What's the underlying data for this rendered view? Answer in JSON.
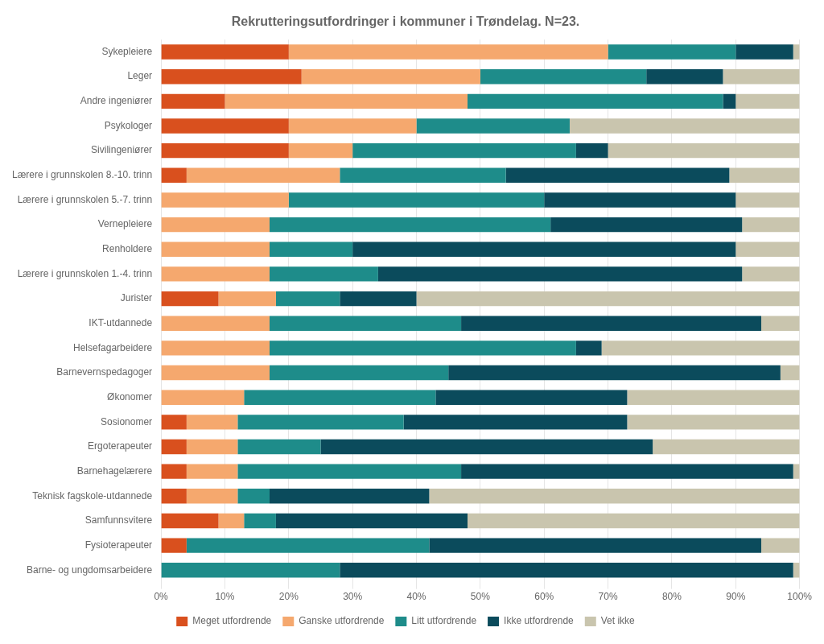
{
  "chart_data": {
    "type": "bar",
    "orientation": "horizontal",
    "stacked": true,
    "title": "Rekrutteringsutfordringer i kommuner i Trøndelag. N=23.",
    "categories": [
      "Sykepleiere",
      "Leger",
      "Andre ingeniører",
      "Psykologer",
      "Sivilingeniører",
      "Lærere i grunnskolen 8.-10. trinn",
      "Lærere i grunnskolen 5.-7. trinn",
      "Vernepleiere",
      "Renholdere",
      "Lærere i grunnskolen 1.-4. trinn",
      "Jurister",
      "IKT-utdannede",
      "Helsefagarbeidere",
      "Barnevernspedagoger",
      "Økonomer",
      "Sosionomer",
      "Ergoterapeuter",
      "Barnehagelærere",
      "Teknisk fagskole-utdannede",
      "Samfunnsvitere",
      "Fysioterapeuter",
      "Barne- og ungdomsarbeidere"
    ],
    "series": [
      {
        "name": "Meget utfordrende",
        "color": "#D9501E",
        "values": [
          20,
          22,
          10,
          20,
          20,
          4,
          0,
          0,
          0,
          0,
          9,
          0,
          0,
          0,
          0,
          4,
          4,
          4,
          4,
          9,
          4,
          0
        ]
      },
      {
        "name": "Ganske utfordrende",
        "color": "#F5A86E",
        "values": [
          50,
          28,
          38,
          20,
          10,
          24,
          20,
          17,
          17,
          17,
          9,
          17,
          17,
          17,
          13,
          8,
          8,
          8,
          8,
          4,
          0,
          0
        ]
      },
      {
        "name": "Litt utfordrende",
        "color": "#1E8C8A",
        "values": [
          20,
          26,
          40,
          24,
          35,
          26,
          40,
          44,
          13,
          17,
          10,
          30,
          48,
          28,
          30,
          26,
          13,
          35,
          5,
          5,
          38,
          28
        ]
      },
      {
        "name": "Ikke utfordrende",
        "color": "#0B4B5C",
        "values": [
          9,
          12,
          2,
          0,
          5,
          35,
          30,
          30,
          60,
          57,
          12,
          47,
          4,
          52,
          30,
          35,
          52,
          52,
          25,
          30,
          52,
          71
        ]
      },
      {
        "name": "Vet ikke",
        "color": "#C9C5AE",
        "values": [
          1,
          12,
          10,
          36,
          30,
          11,
          10,
          9,
          10,
          9,
          60,
          6,
          31,
          3,
          27,
          27,
          23,
          1,
          58,
          52,
          6,
          1
        ]
      }
    ],
    "xlim": [
      0,
      100
    ],
    "xticks": [
      {
        "value": 0,
        "label": "0%"
      },
      {
        "value": 10,
        "label": "10%"
      },
      {
        "value": 20,
        "label": "20%"
      },
      {
        "value": 30,
        "label": "30%"
      },
      {
        "value": 40,
        "label": "40%"
      },
      {
        "value": 50,
        "label": "50%"
      },
      {
        "value": 60,
        "label": "60%"
      },
      {
        "value": 70,
        "label": "70%"
      },
      {
        "value": 80,
        "label": "80%"
      },
      {
        "value": 90,
        "label": "90%"
      },
      {
        "value": 100,
        "label": "100%"
      }
    ],
    "grid": true,
    "legend": "bottom"
  }
}
